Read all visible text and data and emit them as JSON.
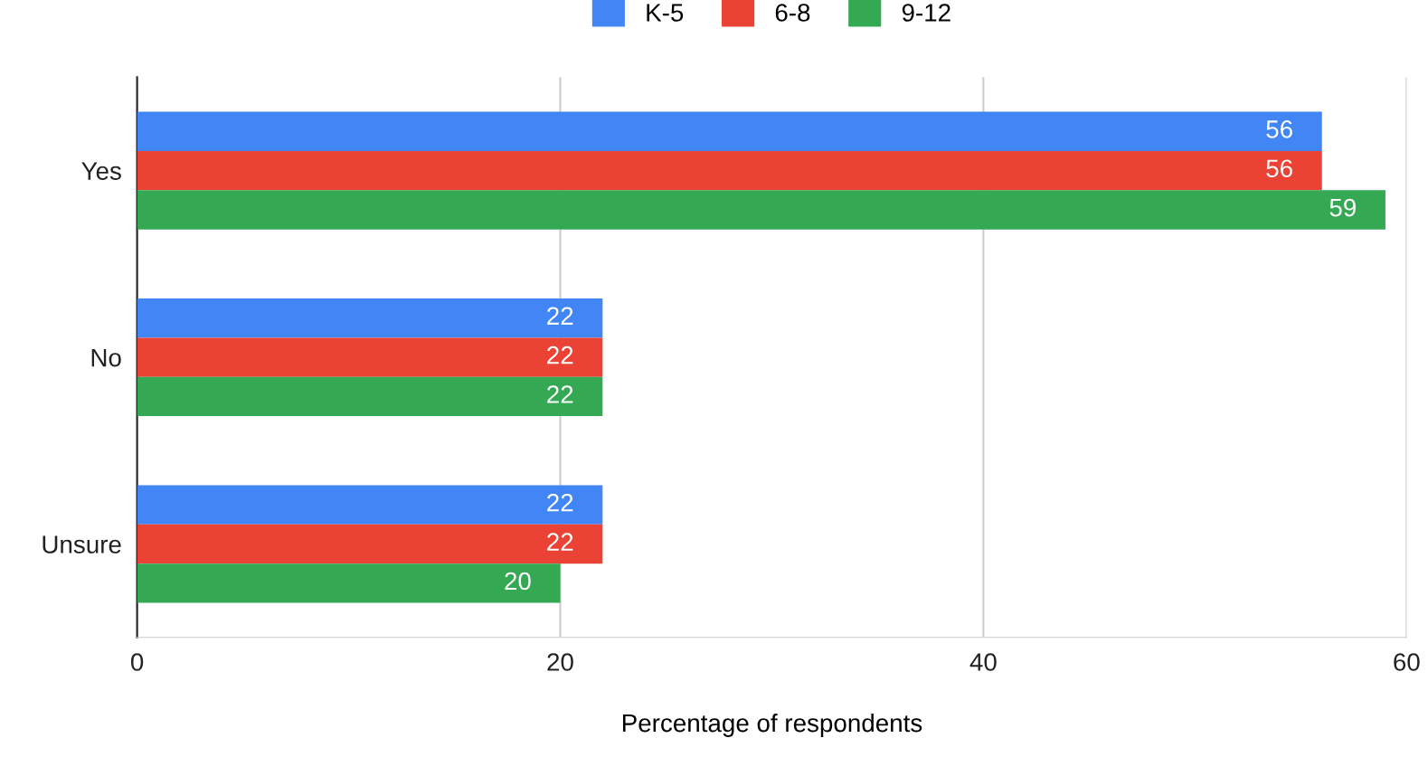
{
  "chart_data": {
    "type": "bar",
    "orientation": "horizontal",
    "xlabel": "Percentage of respondents",
    "categories": [
      "Yes",
      "No",
      "Unsure"
    ],
    "series": [
      {
        "name": "K-5",
        "color": "#4285f4",
        "values": [
          56,
          22,
          22
        ]
      },
      {
        "name": "6-8",
        "color": "#ea4335",
        "values": [
          56,
          22,
          22
        ]
      },
      {
        "name": "9-12",
        "color": "#34a853",
        "values": [
          59,
          22,
          20
        ]
      }
    ],
    "xlim": [
      0,
      60
    ],
    "xticks": [
      0,
      20,
      40,
      60
    ],
    "grid": "x",
    "legend": "top",
    "data_labels": true
  }
}
